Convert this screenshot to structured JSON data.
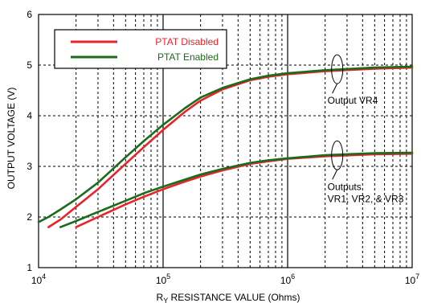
{
  "chart_data": {
    "type": "line",
    "xlabel": "RY RESISTANCE VALUE (Ohms)",
    "ylabel": "OUTPUT VOLTAGE (V)",
    "x_scale": "log",
    "xlim": [
      10000,
      10000000
    ],
    "ylim": [
      1,
      6
    ],
    "x_ticks": [
      10000,
      100000,
      1000000,
      10000000
    ],
    "x_tick_labels": [
      {
        "base": "10",
        "exp": "4"
      },
      {
        "base": "10",
        "exp": "5"
      },
      {
        "base": "10",
        "exp": "6"
      },
      {
        "base": "10",
        "exp": "7"
      }
    ],
    "y_ticks": [
      1,
      2,
      3,
      4,
      5,
      6
    ],
    "y_tick_labels": [
      "1",
      "2",
      "3",
      "4",
      "5",
      "6"
    ],
    "grid": true,
    "legend": {
      "placement": "top-left",
      "entries": [
        {
          "label": "PTAT Disabled",
          "color": "#e8232a"
        },
        {
          "label": "PTAT Enabled",
          "color": "#1a6b1a"
        }
      ]
    },
    "series": [
      {
        "name": "PTAT Disabled",
        "group": "VR4",
        "color": "#e8232a",
        "x": [
          12000,
          15000,
          20000,
          30000,
          50000,
          70000,
          100000,
          150000,
          200000,
          300000,
          500000,
          700000,
          1000000,
          2000000,
          5000000,
          10000000
        ],
        "y": [
          1.8,
          1.95,
          2.2,
          2.55,
          3.05,
          3.38,
          3.72,
          4.08,
          4.3,
          4.52,
          4.7,
          4.77,
          4.82,
          4.88,
          4.93,
          4.95
        ]
      },
      {
        "name": "PTAT Enabled",
        "group": "VR4",
        "color": "#1a6b1a",
        "x": [
          10000,
          12000,
          15000,
          20000,
          30000,
          50000,
          70000,
          100000,
          150000,
          200000,
          300000,
          500000,
          700000,
          1000000,
          2000000,
          5000000,
          10000000
        ],
        "y": [
          1.9,
          2.0,
          2.15,
          2.35,
          2.68,
          3.18,
          3.5,
          3.82,
          4.15,
          4.36,
          4.55,
          4.72,
          4.79,
          4.84,
          4.9,
          4.95,
          4.97
        ]
      },
      {
        "name": "PTAT Disabled",
        "group": "VR1-VR3",
        "color": "#e8232a",
        "x": [
          20000,
          30000,
          50000,
          70000,
          100000,
          150000,
          200000,
          300000,
          500000,
          700000,
          1000000,
          2000000,
          5000000,
          10000000
        ],
        "y": [
          1.8,
          2.0,
          2.25,
          2.4,
          2.55,
          2.7,
          2.8,
          2.92,
          3.05,
          3.1,
          3.15,
          3.2,
          3.24,
          3.25
        ]
      },
      {
        "name": "PTAT Enabled",
        "group": "VR1-VR3",
        "color": "#1a6b1a",
        "x": [
          15000,
          20000,
          30000,
          50000,
          70000,
          100000,
          150000,
          200000,
          300000,
          500000,
          700000,
          1000000,
          2000000,
          5000000,
          10000000
        ],
        "y": [
          1.8,
          1.92,
          2.1,
          2.32,
          2.47,
          2.6,
          2.74,
          2.84,
          2.95,
          3.07,
          3.12,
          3.16,
          3.22,
          3.26,
          3.27
        ]
      }
    ],
    "annotations": [
      {
        "lines": [
          "Output VR4"
        ],
        "x": 2500000,
        "y": 4.95
      },
      {
        "lines": [
          "Outputs",
          "VR1, VR2, & VR3"
        ],
        "x": 2500000,
        "y": 3.25
      }
    ]
  }
}
